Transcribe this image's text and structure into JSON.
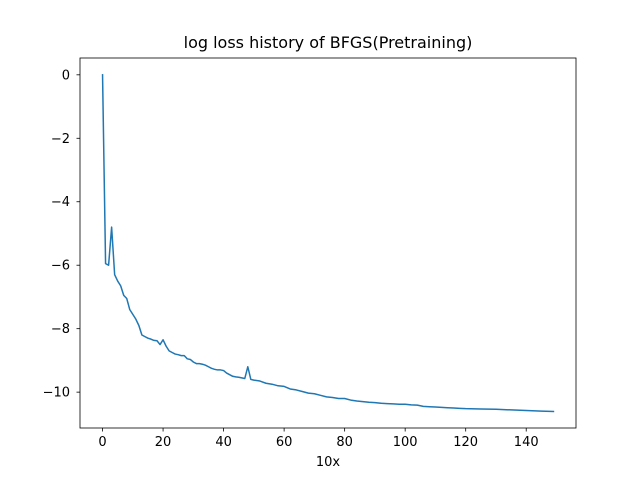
{
  "chart_data": {
    "type": "line",
    "title": "log loss history of BFGS(Pretraining)",
    "xlabel": "10x",
    "ylabel": "",
    "xlim": [
      -7.45,
      156.45
    ],
    "ylim": [
      -11.13,
      0.53
    ],
    "xticks": [
      0,
      20,
      40,
      60,
      80,
      100,
      120,
      140
    ],
    "yticks": [
      0,
      -2,
      -4,
      -6,
      -8,
      -10
    ],
    "ytick_labels": [
      "0",
      "−2",
      "−4",
      "−6",
      "−8",
      "−10"
    ],
    "grid": false,
    "legend": "none",
    "line_color": "#1f77b4",
    "series": [
      {
        "x": [
          0,
          1,
          2,
          3,
          4,
          5,
          6,
          7,
          8,
          9,
          10,
          11,
          12,
          13,
          14,
          15,
          16,
          17,
          18,
          19,
          20,
          21,
          22,
          23,
          24,
          25,
          26,
          27,
          28,
          29,
          30,
          31,
          32,
          33,
          34,
          35,
          36,
          37,
          38,
          39,
          40,
          41,
          42,
          43,
          44,
          45,
          46,
          47,
          48,
          49,
          50,
          52,
          54,
          56,
          58,
          60,
          62,
          64,
          66,
          68,
          70,
          72,
          74,
          76,
          78,
          80,
          82,
          84,
          86,
          88,
          90,
          92,
          94,
          96,
          98,
          100,
          102,
          104,
          106,
          108,
          110,
          112,
          114,
          116,
          118,
          120,
          125,
          130,
          135,
          140,
          145,
          149
        ],
        "y": [
          0.0,
          -5.95,
          -6.0,
          -4.8,
          -6.3,
          -6.5,
          -6.65,
          -6.95,
          -7.05,
          -7.4,
          -7.55,
          -7.7,
          -7.9,
          -8.2,
          -8.25,
          -8.3,
          -8.33,
          -8.37,
          -8.38,
          -8.5,
          -8.35,
          -8.55,
          -8.7,
          -8.75,
          -8.8,
          -8.82,
          -8.85,
          -8.85,
          -8.95,
          -8.97,
          -9.05,
          -9.1,
          -9.1,
          -9.12,
          -9.15,
          -9.2,
          -9.25,
          -9.28,
          -9.3,
          -9.3,
          -9.32,
          -9.4,
          -9.45,
          -9.5,
          -9.52,
          -9.53,
          -9.55,
          -9.57,
          -9.2,
          -9.6,
          -9.62,
          -9.65,
          -9.72,
          -9.75,
          -9.8,
          -9.82,
          -9.9,
          -9.93,
          -9.98,
          -10.03,
          -10.05,
          -10.1,
          -10.15,
          -10.17,
          -10.2,
          -10.2,
          -10.25,
          -10.28,
          -10.3,
          -10.32,
          -10.33,
          -10.35,
          -10.36,
          -10.37,
          -10.38,
          -10.38,
          -10.4,
          -10.41,
          -10.45,
          -10.46,
          -10.47,
          -10.48,
          -10.49,
          -10.5,
          -10.51,
          -10.52,
          -10.53,
          -10.54,
          -10.56,
          -10.58,
          -10.6,
          -10.61
        ]
      }
    ]
  }
}
